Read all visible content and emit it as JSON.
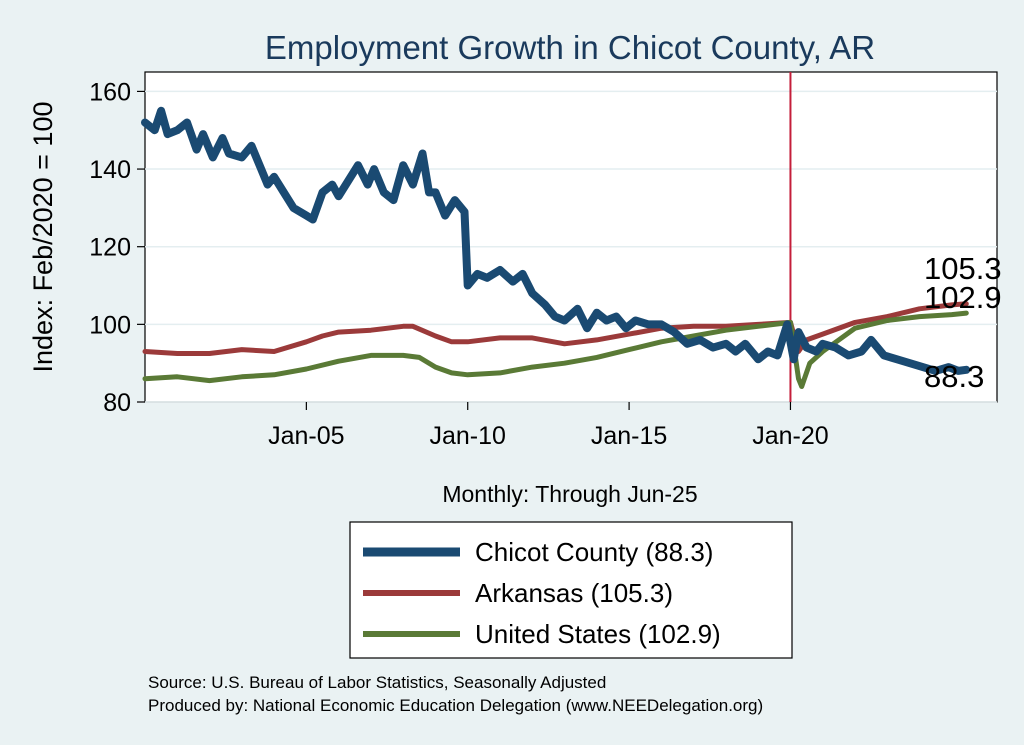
{
  "chart_data": {
    "type": "line",
    "title": "Employment Growth in Chicot  County, AR",
    "ylabel": "Index: Feb/2020 = 100",
    "xlabel": "Monthly: Through Jun-25",
    "ylim": [
      80,
      165
    ],
    "yticks": [
      80,
      100,
      120,
      140,
      160
    ],
    "xlim": [
      2000.0,
      2026.4
    ],
    "xticks": [
      {
        "label": "Jan-05",
        "value": 2005.0
      },
      {
        "label": "Jan-10",
        "value": 2010.0
      },
      {
        "label": "Jan-15",
        "value": 2015.0
      },
      {
        "label": "Jan-20",
        "value": 2020.0
      }
    ],
    "reference_line": {
      "x": 2020.0,
      "color": "#c41e3a"
    },
    "series": [
      {
        "name": "Chicot  County",
        "legend_label": "Chicot  County (88.3)",
        "end_label": "88.3",
        "end_value": 88.3,
        "color": "#1a4a72",
        "x": [
          2000.0,
          2000.3,
          2000.5,
          2000.7,
          2001.0,
          2001.3,
          2001.6,
          2001.8,
          2002.1,
          2002.4,
          2002.6,
          2003.0,
          2003.3,
          2003.6,
          2003.8,
          2004.0,
          2004.3,
          2004.6,
          2005.0,
          2005.2,
          2005.5,
          2005.8,
          2006.0,
          2006.3,
          2006.6,
          2006.9,
          2007.1,
          2007.4,
          2007.7,
          2008.0,
          2008.3,
          2008.6,
          2008.8,
          2009.0,
          2009.3,
          2009.6,
          2009.9,
          2010.0,
          2010.3,
          2010.6,
          2011.0,
          2011.4,
          2011.7,
          2012.0,
          2012.4,
          2012.7,
          2013.0,
          2013.4,
          2013.7,
          2014.0,
          2014.3,
          2014.6,
          2014.9,
          2015.2,
          2015.6,
          2016.0,
          2016.4,
          2016.8,
          2017.2,
          2017.6,
          2018.0,
          2018.3,
          2018.6,
          2019.0,
          2019.3,
          2019.6,
          2019.9,
          2020.1,
          2020.25,
          2020.5,
          2020.8,
          2021.0,
          2021.4,
          2021.8,
          2022.2,
          2022.5,
          2022.9,
          2023.3,
          2023.7,
          2024.1,
          2024.5,
          2024.9,
          2025.2,
          2025.45
        ],
        "values": [
          152,
          150,
          155,
          149,
          150,
          152,
          145,
          149,
          143,
          148,
          144,
          143,
          146,
          140,
          136,
          138,
          134,
          130,
          128,
          127,
          134,
          136,
          133,
          137,
          141,
          136,
          140,
          134,
          132,
          141,
          136,
          144,
          134,
          134,
          128,
          132,
          129,
          110,
          113,
          112,
          114,
          111,
          113,
          108,
          105,
          102,
          101,
          104,
          99,
          103,
          101,
          102,
          99,
          101,
          100,
          100,
          98,
          95,
          96,
          94,
          95,
          93,
          95,
          91,
          93,
          92,
          100,
          91,
          98,
          94,
          93,
          95,
          94,
          92,
          93,
          96,
          92,
          91,
          90,
          89,
          88,
          89,
          88,
          88.3
        ]
      },
      {
        "name": "Arkansas",
        "legend_label": "Arkansas (105.3)",
        "end_label": "105.3",
        "end_value": 105.3,
        "color": "#9b3a3a",
        "x": [
          2000.0,
          2001.0,
          2002.0,
          2003.0,
          2004.0,
          2005.0,
          2005.5,
          2006.0,
          2007.0,
          2008.0,
          2008.3,
          2009.0,
          2009.5,
          2010.0,
          2011.0,
          2012.0,
          2013.0,
          2014.0,
          2015.0,
          2016.0,
          2017.0,
          2018.0,
          2019.0,
          2020.0,
          2020.25,
          2020.5,
          2021.0,
          2022.0,
          2023.0,
          2024.0,
          2025.0,
          2025.45
        ],
        "values": [
          93,
          92.5,
          92.5,
          93.5,
          93,
          95.5,
          97,
          98,
          98.5,
          99.5,
          99.5,
          97,
          95.5,
          95.5,
          96.5,
          96.5,
          95,
          96,
          97.5,
          99,
          99.5,
          99.5,
          100,
          100.5,
          93,
          96,
          97.5,
          100.5,
          102,
          104,
          105,
          105.3
        ]
      },
      {
        "name": "United States",
        "legend_label": "United States (102.9)",
        "end_label": "102.9",
        "end_value": 102.9,
        "color": "#5a7a36",
        "x": [
          2000.0,
          2001.0,
          2002.0,
          2003.0,
          2004.0,
          2005.0,
          2006.0,
          2007.0,
          2008.0,
          2008.5,
          2009.0,
          2009.5,
          2010.0,
          2011.0,
          2012.0,
          2013.0,
          2014.0,
          2015.0,
          2016.0,
          2017.0,
          2018.0,
          2019.0,
          2020.0,
          2020.25,
          2020.35,
          2020.6,
          2021.0,
          2021.5,
          2022.0,
          2023.0,
          2024.0,
          2025.0,
          2025.45
        ],
        "values": [
          86,
          86.5,
          85.5,
          86.5,
          87,
          88.5,
          90.5,
          92,
          92,
          91.5,
          89,
          87.5,
          87,
          87.5,
          89,
          90,
          91.5,
          93.5,
          95.5,
          97,
          98.5,
          99.5,
          100.5,
          86,
          84,
          90,
          93,
          96,
          99,
          101,
          102,
          102.5,
          102.9
        ]
      }
    ]
  },
  "source_line": "Source: U.S. Bureau of Labor Statistics, Seasonally Adjusted",
  "produced_line": "Produced by: National Economic Education Delegation (www.NEEDelegation.org)"
}
